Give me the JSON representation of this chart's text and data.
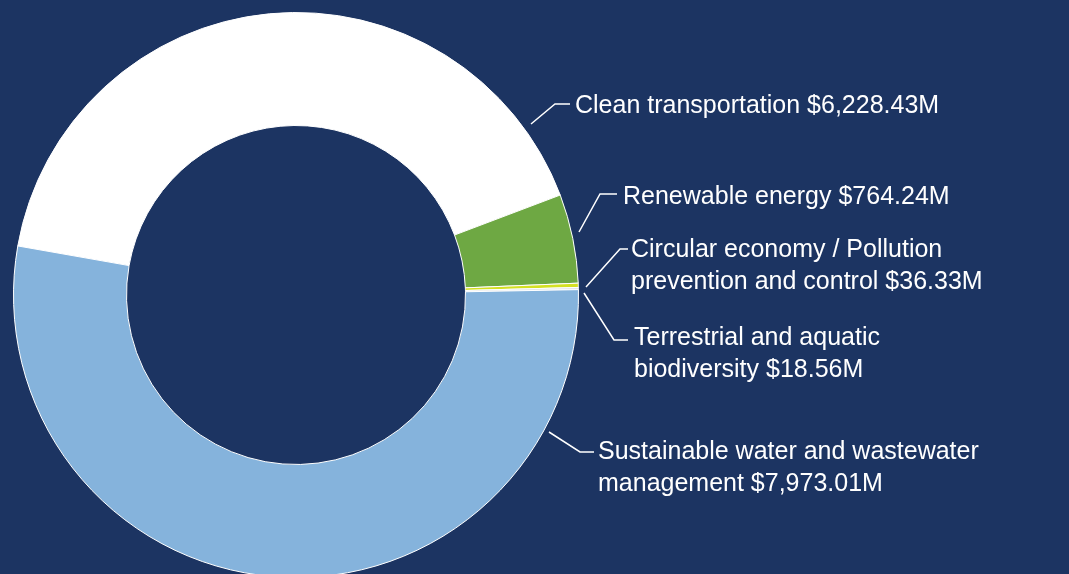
{
  "chart_data": {
    "type": "donut",
    "categories": [
      "Clean transportation",
      "Renewable energy",
      "Circular economy / Pollution prevention and control",
      "Terrestrial and aquatic biodiversity",
      "Sustainable water and wastewater management"
    ],
    "values": [
      6228.43,
      764.24,
      36.33,
      18.56,
      7973.01
    ],
    "value_labels": [
      "$6,228.43M",
      "$764.24M",
      "$36.33M",
      "$18.56M",
      "$7,973.01M"
    ],
    "colors": [
      "#ffffff",
      "#6ea843",
      "#d4e022",
      "#e4e4e4",
      "#85b3dc"
    ],
    "legend": false
  }
}
